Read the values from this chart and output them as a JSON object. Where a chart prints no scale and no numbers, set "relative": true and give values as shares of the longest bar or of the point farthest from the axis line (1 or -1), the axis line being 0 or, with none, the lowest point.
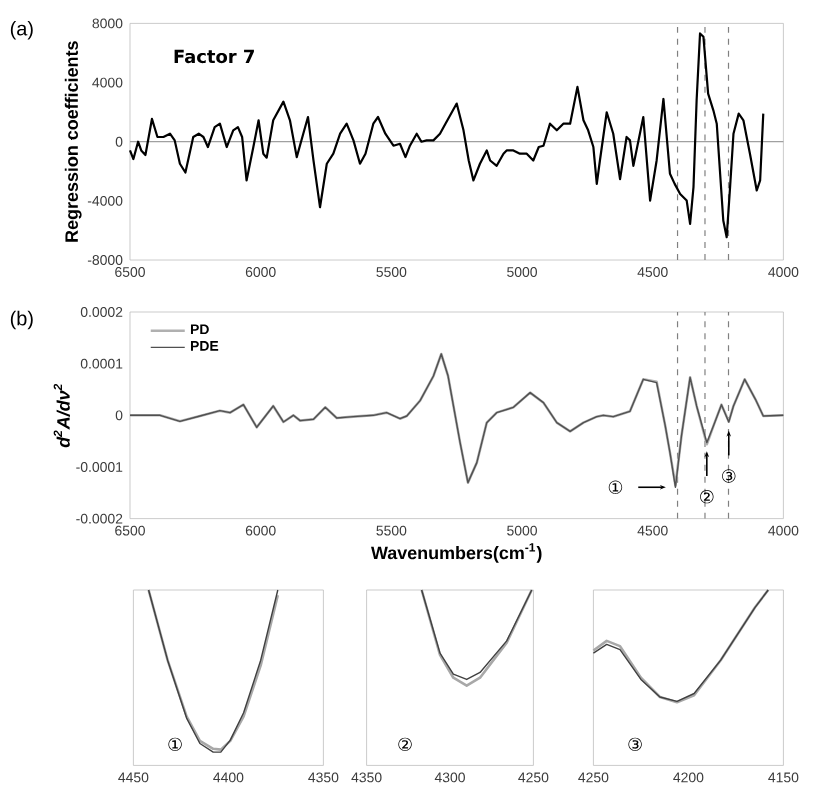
{
  "chart_data": [
    {
      "type": "line",
      "title": "(a)",
      "ylabel": "Regression coefficients",
      "annotations": [
        "Factor 7"
      ],
      "xlim": [
        6500,
        4000
      ],
      "xticks": [
        6500,
        6000,
        5500,
        5000,
        4500,
        4000
      ],
      "ylim": [
        -8000,
        8000
      ],
      "yticks": [
        -8000,
        -4000,
        0,
        4000,
        8000
      ],
      "ref_lines": [
        {
          "axis": "y",
          "value": 0,
          "color": "#a0a0a0",
          "line_style": "solid"
        },
        {
          "axis": "x",
          "value": 4405,
          "color": "#808080",
          "line_style": "dashed"
        },
        {
          "axis": "x",
          "value": 4300,
          "color": "#808080",
          "line_style": "dashed"
        },
        {
          "axis": "x",
          "value": 4210,
          "color": "#808080",
          "line_style": "dashed"
        }
      ],
      "x": [
        6500,
        6487,
        6469,
        6457,
        6441,
        6416,
        6395,
        6372,
        6347,
        6329,
        6309,
        6288,
        6258,
        6237,
        6219,
        6202,
        6176,
        6156,
        6130,
        6105,
        6087,
        6071,
        6054,
        6028,
        6008,
        5990,
        5977,
        5952,
        5913,
        5888,
        5862,
        5837,
        5819,
        5798,
        5773,
        5747,
        5722,
        5696,
        5671,
        5645,
        5620,
        5599,
        5569,
        5551,
        5523,
        5492,
        5467,
        5446,
        5429,
        5403,
        5385,
        5365,
        5339,
        5314,
        5293,
        5250,
        5224,
        5204,
        5186,
        5161,
        5135,
        5122,
        5097,
        5071,
        5059,
        5033,
        5008,
        4982,
        4957,
        4936,
        4918,
        4893,
        4867,
        4842,
        4816,
        4788,
        4765,
        4747,
        4727,
        4714,
        4702,
        4676,
        4651,
        4625,
        4600,
        4587,
        4574,
        4536,
        4510,
        4485,
        4459,
        4434,
        4416,
        4395,
        4370,
        4357,
        4344,
        4332,
        4319,
        4306,
        4288,
        4268,
        4255,
        4230,
        4217,
        4204,
        4191,
        4171,
        4153,
        4128,
        4102,
        4089,
        4077
      ],
      "series": [
        {
          "color": "#000000",
          "values": [
            -590,
            -1175,
            0,
            -590,
            -900,
            1540,
            320,
            320,
            540,
            90,
            -1490,
            -2080,
            320,
            540,
            320,
            -360,
            990,
            1220,
            -360,
            770,
            990,
            320,
            -2620,
            -360,
            1450,
            -810,
            -1080,
            1450,
            2710,
            1450,
            -1040,
            540,
            1670,
            -1270,
            -4430,
            -1490,
            -810,
            540,
            1220,
            90,
            -1490,
            -810,
            1220,
            1670,
            540,
            -270,
            -140,
            -1040,
            -270,
            540,
            0,
            90,
            90,
            540,
            1220,
            2580,
            770,
            -1270,
            -2620,
            -1490,
            -590,
            -1270,
            -1630,
            -810,
            -590,
            -590,
            -810,
            -810,
            -1270,
            -360,
            -270,
            1220,
            770,
            1220,
            1220,
            3710,
            1450,
            770,
            -360,
            -2850,
            -1270,
            1990,
            540,
            -2530,
            320,
            90,
            -1630,
            1670,
            -3980,
            -1270,
            2890,
            -2170,
            -2850,
            -3530,
            -3980,
            -5560,
            -3070,
            2800,
            7320,
            7100,
            3250,
            2120,
            1220,
            -5330,
            -6460,
            -3070,
            540,
            1900,
            1450,
            -810,
            -3300,
            -2620,
            1900
          ]
        }
      ]
    },
    {
      "type": "line",
      "title": "(b)",
      "xlabel": "Wavenumbers(cm$^{-1}$)",
      "ylabel": "d$^{2}$A/dν$^{2}$",
      "legend": "top left",
      "xlim": [
        6500,
        4000
      ],
      "xticks": [
        6500,
        6000,
        5500,
        5000,
        4500,
        4000
      ],
      "ylim": [
        -0.0002,
        0.0002
      ],
      "yticks": [
        -0.0002,
        -0.0001,
        0,
        0.0001,
        0.0002
      ],
      "ref_lines": [
        {
          "axis": "x",
          "value": 4405,
          "color": "#808080",
          "line_style": "dashed"
        },
        {
          "axis": "x",
          "value": 4300,
          "color": "#808080",
          "line_style": "dashed"
        },
        {
          "axis": "x",
          "value": 4210,
          "color": "#808080",
          "line_style": "dashed"
        }
      ],
      "annotations": [
        {
          "text": "①",
          "x": 4413,
          "y": -0.0001393
        },
        {
          "text": "②",
          "x": 4293,
          "y": -5.29e-05
        },
        {
          "text": "③",
          "x": 4209,
          "y": -1.29e-05
        }
      ],
      "x": [
        6500,
        6385,
        6309,
        6232,
        6156,
        6117,
        6066,
        6015,
        5952,
        5913,
        5875,
        5849,
        5798,
        5753,
        5709,
        5645,
        5569,
        5518,
        5467,
        5441,
        5390,
        5339,
        5309,
        5283,
        5237,
        5207,
        5173,
        5135,
        5097,
        5033,
        4969,
        4918,
        4867,
        4816,
        4765,
        4714,
        4689,
        4651,
        4587,
        4536,
        4485,
        4452,
        4434,
        4413,
        4390,
        4357,
        4332,
        4293,
        4263,
        4237,
        4209,
        4191,
        4148,
        4107,
        4077,
        4000
      ],
      "series": [
        {
          "name": "PD",
          "color": "#b0b0b0",
          "values": [
            0,
            0,
            -1.16e-05,
            -1.3e-06,
            9e-06,
            5.2e-06,
            2.06e-05,
            -2.32e-05,
            1.81e-05,
            -1.29e-05,
            0,
            -1.03e-05,
            -7.7e-06,
            1.55e-05,
            -5.2e-06,
            -2.6e-06,
            0,
            5.2e-06,
            -6.5e-06,
            -1.3e-06,
            2.84e-05,
            7.61e-05,
            0.0001187,
            7.61e-05,
            -5.29e-05,
            -0.0001303,
            -9.16e-05,
            -1.42e-05,
            5.2e-06,
            1.55e-05,
            4.39e-05,
            2.45e-05,
            -1.42e-05,
            -3.1e-05,
            -1.42e-05,
            -2.6e-06,
            0,
            -2.6e-06,
            7.7e-06,
            6.97e-05,
            6.5e-05,
            -2.06e-05,
            -7.22e-05,
            -0.000136,
            -4e-05,
            7.35e-05,
            1.81e-05,
            -5.6e-05,
            -1.42e-05,
            2.06e-05,
            -1.2e-05,
            1.81e-05,
            6.97e-05,
            3.1e-05,
            -1.3e-06,
            0
          ]
        },
        {
          "name": "PDE",
          "color": "#505050",
          "values": [
            0,
            0,
            -1.16e-05,
            -1.3e-06,
            9e-06,
            5.2e-06,
            2.06e-05,
            -2.32e-05,
            1.81e-05,
            -1.29e-05,
            0,
            -1.03e-05,
            -7.7e-06,
            1.55e-05,
            -5.2e-06,
            -2.6e-06,
            0,
            5.2e-06,
            -6.5e-06,
            -1.3e-06,
            2.84e-05,
            7.61e-05,
            0.0001187,
            7.61e-05,
            -5.29e-05,
            -0.0001303,
            -9.16e-05,
            -1.42e-05,
            5.2e-06,
            1.55e-05,
            4.39e-05,
            2.45e-05,
            -1.42e-05,
            -3.1e-05,
            -1.42e-05,
            -2.6e-06,
            0,
            -2.6e-06,
            7.7e-06,
            6.97e-05,
            6.32e-05,
            -2.06e-05,
            -7.22e-05,
            -0.0001393,
            -4e-05,
            7.35e-05,
            1.81e-05,
            -5.29e-05,
            -1.42e-05,
            2.06e-05,
            -1.29e-05,
            1.81e-05,
            6.97e-05,
            3.1e-05,
            -1.3e-06,
            0
          ]
        }
      ]
    },
    {
      "type": "line",
      "relative": true,
      "tick_labels": "x",
      "annotations": [
        "①"
      ],
      "xlim": [
        4450,
        4350
      ],
      "xticks": [
        4450,
        4400,
        4350
      ],
      "x": [
        4442,
        4432,
        4422,
        4415,
        4408,
        4404,
        4399,
        4392,
        4383,
        4374
      ],
      "series": [
        {
          "color": "#a8a8a8",
          "values": [
            1.0,
            0.6,
            0.28,
            0.14,
            0.095,
            0.09,
            0.14,
            0.28,
            0.57,
            0.97
          ]
        },
        {
          "color": "#404040",
          "values": [
            1.0,
            0.6,
            0.27,
            0.125,
            0.076,
            0.076,
            0.144,
            0.3,
            0.6,
            1.0
          ]
        }
      ]
    },
    {
      "type": "line",
      "relative": true,
      "tick_labels": "x",
      "annotations": [
        "②"
      ],
      "xlim": [
        4350,
        4250
      ],
      "xticks": [
        4350,
        4300,
        4250
      ],
      "x": [
        4317,
        4306,
        4298,
        4290,
        4282,
        4266,
        4251
      ],
      "series": [
        {
          "color": "#a8a8a8",
          "values": [
            1.0,
            0.63,
            0.5,
            0.455,
            0.5,
            0.7,
            1.0
          ]
        },
        {
          "color": "#404040",
          "values": [
            1.0,
            0.64,
            0.52,
            0.49,
            0.53,
            0.71,
            1.0
          ]
        }
      ]
    },
    {
      "type": "line",
      "relative": true,
      "tick_labels": "x",
      "annotations": [
        "③"
      ],
      "xlim": [
        4250,
        4150
      ],
      "xticks": [
        4250,
        4200,
        4150
      ],
      "x": [
        4250,
        4243,
        4236,
        4225,
        4215,
        4206,
        4197,
        4183,
        4165,
        4158
      ],
      "series": [
        {
          "color": "#a8a8a8",
          "values": [
            0.655,
            0.71,
            0.68,
            0.5,
            0.39,
            0.36,
            0.4,
            0.6,
            0.9,
            1.0
          ]
        },
        {
          "color": "#404040",
          "values": [
            0.64,
            0.69,
            0.66,
            0.49,
            0.39,
            0.365,
            0.41,
            0.6,
            0.9,
            1.0
          ]
        }
      ]
    }
  ]
}
